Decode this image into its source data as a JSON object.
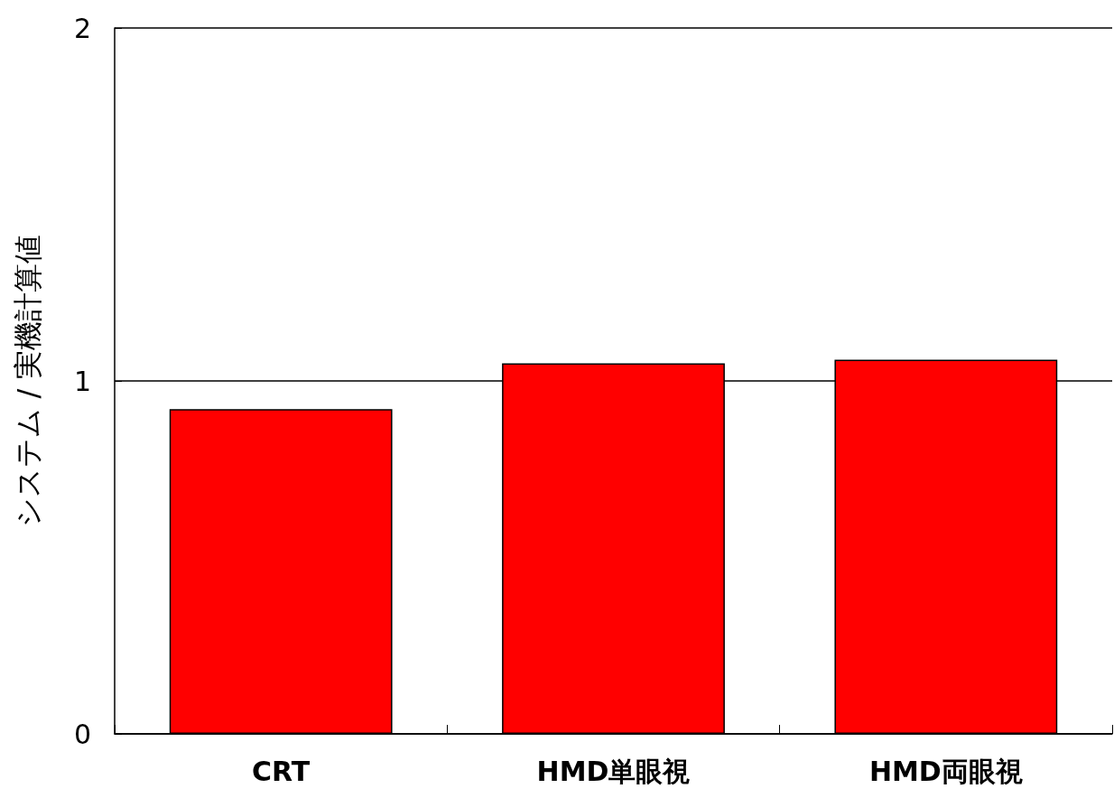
{
  "chart_data": {
    "type": "bar",
    "ylabel": "システム / 実機計算値",
    "categories": [
      "CRT",
      "HMD単眼視",
      "HMD両眼視"
    ],
    "series": [
      {
        "color": "#ff0000",
        "values": [
          0.92,
          1.05,
          1.06
        ]
      }
    ],
    "ylim": [
      0,
      2
    ],
    "yticks": [
      0,
      1,
      2
    ],
    "grid": "y"
  }
}
